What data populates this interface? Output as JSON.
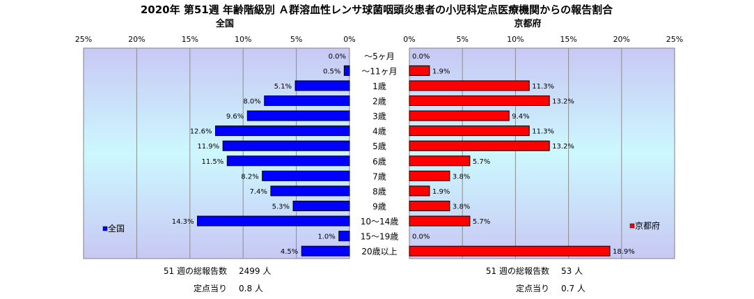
{
  "chart_data": {
    "type": "bar",
    "title": "2020年 第51週 年齢階級別 Ａ群溶血性レンサ球菌咽頭炎患者の小児科定点医療機関からの報告割合",
    "categories": [
      "〜5ヶ月",
      "〜11ヶ月",
      "1歳",
      "2歳",
      "3歳",
      "4歳",
      "5歳",
      "6歳",
      "7歳",
      "8歳",
      "9歳",
      "10〜14歳",
      "15〜19歳",
      "20歳以上"
    ],
    "xlim": [
      0,
      25
    ],
    "ticks": [
      "25%",
      "20%",
      "15%",
      "10%",
      "5%",
      "0%"
    ],
    "ticks_right": [
      "0%",
      "5%",
      "10%",
      "15%",
      "20%",
      "25%"
    ],
    "panels": [
      {
        "name": "全国",
        "color": "#0000FF",
        "values": [
          0.0,
          0.5,
          5.1,
          8.0,
          9.6,
          12.6,
          11.9,
          11.5,
          8.2,
          7.4,
          5.3,
          14.3,
          1.0,
          4.5
        ],
        "labels": [
          "0.0%",
          "0.5%",
          "5.1%",
          "8.0%",
          "9.6%",
          "12.6%",
          "11.9%",
          "11.5%",
          "8.2%",
          "7.4%",
          "5.3%",
          "14.3%",
          "1.0%",
          "4.5%"
        ],
        "legend": "全国",
        "footer": {
          "total_label": "51 週の総報告数",
          "total_value": "2499 人",
          "per_label": "定点当り",
          "per_value": "0.8 人"
        }
      },
      {
        "name": "京都府",
        "color": "#FF0000",
        "values": [
          0.0,
          1.9,
          11.3,
          13.2,
          9.4,
          11.3,
          13.2,
          5.7,
          3.8,
          1.9,
          3.8,
          5.7,
          0.0,
          18.9
        ],
        "labels": [
          "0.0%",
          "1.9%",
          "11.3%",
          "13.2%",
          "9.4%",
          "11.3%",
          "13.2%",
          "5.7%",
          "3.8%",
          "1.9%",
          "3.8%",
          "5.7%",
          "0.0%",
          "18.9%"
        ],
        "legend": "京都府",
        "footer": {
          "total_label": "51 週の総報告数",
          "total_value": "53 人",
          "per_label": "定点当り",
          "per_value": "0.7 人"
        }
      }
    ],
    "grid": true,
    "legend_position": [
      "bottom-left",
      "bottom-right"
    ]
  }
}
